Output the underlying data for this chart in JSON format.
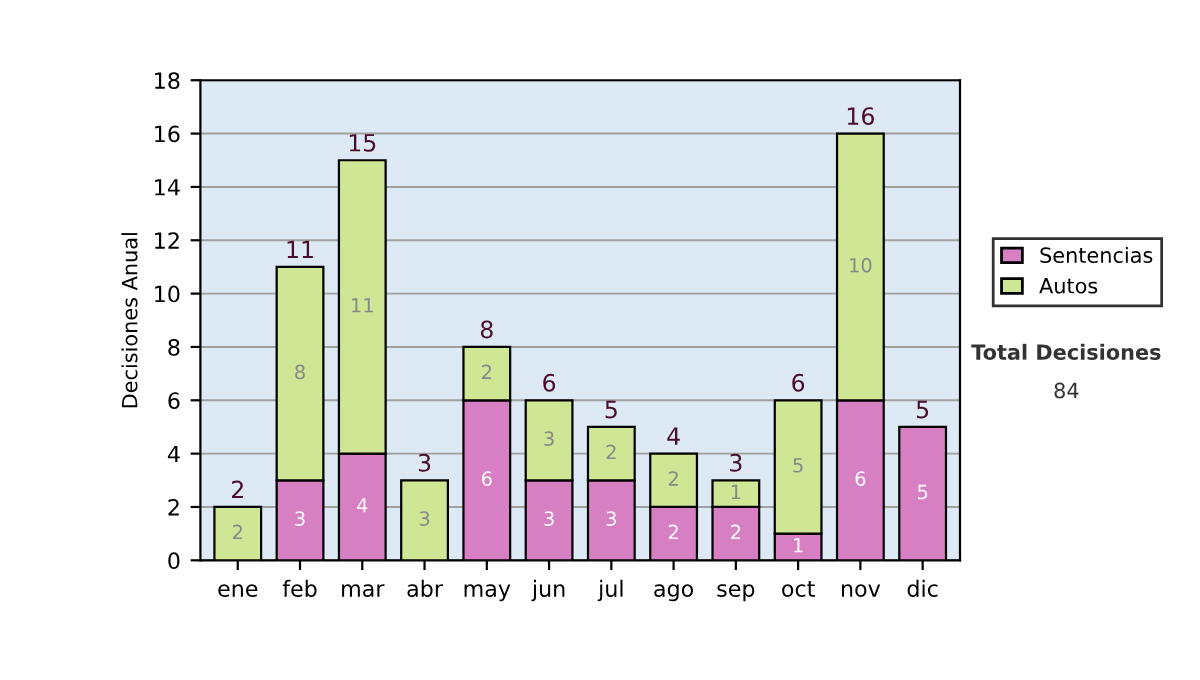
{
  "chart_data": {
    "type": "bar",
    "stacked": true,
    "ylabel": "Decisiones Anual",
    "categories": [
      "ene",
      "feb",
      "mar",
      "abr",
      "may",
      "jun",
      "jul",
      "ago",
      "sep",
      "oct",
      "nov",
      "dic"
    ],
    "series": [
      {
        "name": "Sentencias",
        "color": "#d77fc3",
        "values": [
          null,
          3,
          4,
          null,
          6,
          3,
          3,
          2,
          2,
          1,
          6,
          5
        ],
        "value_labels": [
          null,
          "3",
          "4",
          null,
          "6",
          "3",
          "3",
          "2",
          "2",
          "1",
          "6",
          "5"
        ]
      },
      {
        "name": "Autos",
        "color": "#cfe695",
        "values": [
          2,
          8,
          11,
          3,
          2,
          3,
          2,
          2,
          1,
          5,
          10,
          null
        ],
        "value_labels": [
          "2",
          "8",
          "11",
          "3",
          "2",
          "3",
          "2",
          "2",
          "1",
          "5",
          "10",
          null
        ]
      }
    ],
    "totals": [
      "2",
      "11",
      "15",
      "3",
      "8",
      "6",
      "5",
      "4",
      "3",
      "6",
      "16",
      "5"
    ],
    "ylim": [
      0,
      18
    ],
    "yticks": [
      0,
      2,
      4,
      6,
      8,
      10,
      12,
      14,
      16,
      18
    ],
    "grid": "y",
    "legend": "right",
    "annotations": [
      "Total Decisiones",
      "84"
    ]
  }
}
